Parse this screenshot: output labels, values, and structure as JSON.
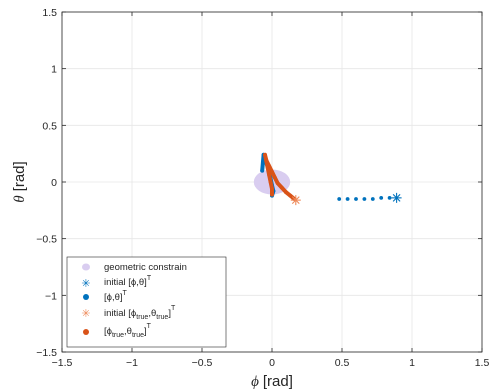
{
  "chart_data": {
    "type": "scatter",
    "xlabel": {
      "symbol": "ϕ",
      "unit": "[rad]"
    },
    "ylabel": {
      "symbol": "θ",
      "unit": "[rad]"
    },
    "xlim": [
      -1.5,
      1.5
    ],
    "ylim": [
      -1.5,
      1.5
    ],
    "xticks": [
      -1.5,
      -1,
      -0.5,
      0,
      0.5,
      1,
      1.5
    ],
    "yticks": [
      -1.5,
      -1,
      -0.5,
      0,
      0.5,
      1,
      1.5
    ],
    "xtick_labels": [
      "−1.5",
      "−1",
      "−0.5",
      "0",
      "0.5",
      "1",
      "1.5"
    ],
    "ytick_labels": [
      "−1.5",
      "−1",
      "−0.5",
      "0",
      "0.5",
      "1",
      "1.5"
    ],
    "grid": true,
    "legend_position": "bottom-left",
    "colors": {
      "constraint": "#d9cdf0",
      "blue": "#0072bd",
      "orange": "#d95319",
      "orange_light": "#ee8a5a"
    },
    "series": [
      {
        "name": "geometric constrain",
        "marker": "ellipse",
        "center": [
          0.0,
          0.0
        ],
        "radii": [
          0.13,
          0.11
        ]
      },
      {
        "name": "initial [ϕ,θ]ᵀ",
        "marker": "asterisk",
        "points": [
          [
            0.89,
            -0.14
          ]
        ]
      },
      {
        "name": "[ϕ,θ]ᵀ",
        "marker": "dot",
        "points": [
          [
            0.48,
            -0.15
          ],
          [
            0.54,
            -0.15
          ],
          [
            0.6,
            -0.15
          ],
          [
            0.66,
            -0.15
          ],
          [
            0.72,
            -0.15
          ],
          [
            0.78,
            -0.14
          ],
          [
            0.84,
            -0.14
          ],
          [
            -0.07,
            0.1
          ],
          [
            -0.06,
            0.24
          ],
          [
            -0.05,
            0.21
          ],
          [
            -0.04,
            0.17
          ],
          [
            -0.03,
            0.13
          ],
          [
            -0.02,
            0.08
          ],
          [
            -0.01,
            0.03
          ],
          [
            0.0,
            -0.03
          ],
          [
            0.01,
            -0.08
          ],
          [
            0.0,
            -0.12
          ]
        ]
      },
      {
        "name": "initial [ϕtrue,θtrue]ᵀ",
        "marker": "asterisk",
        "points": [
          [
            0.17,
            -0.16
          ]
        ]
      },
      {
        "name": "[ϕtrue,θtrue]ᵀ",
        "marker": "dot",
        "points": [
          [
            0.16,
            -0.15
          ],
          [
            0.13,
            -0.12
          ],
          [
            0.1,
            -0.09
          ],
          [
            0.07,
            -0.05
          ],
          [
            0.04,
            -0.01
          ],
          [
            0.02,
            0.04
          ],
          [
            0.0,
            0.09
          ],
          [
            -0.02,
            0.14
          ],
          [
            -0.04,
            0.19
          ],
          [
            -0.05,
            0.24
          ],
          [
            -0.04,
            0.18
          ],
          [
            -0.03,
            0.12
          ],
          [
            -0.02,
            0.06
          ],
          [
            -0.01,
            0.0
          ],
          [
            0.0,
            -0.06
          ],
          [
            0.0,
            -0.11
          ]
        ]
      }
    ],
    "legend": {
      "constraint_label": "geometric constrain",
      "initial_est_label": "initial [ϕ,θ]",
      "est_label": "[ϕ,θ]",
      "initial_true_prefix": "initial [ϕ",
      "true_prefix": "[ϕ",
      "sub_true": "true",
      "mid_theta": ",θ",
      "close_bracket": "]",
      "transpose": "T"
    }
  }
}
